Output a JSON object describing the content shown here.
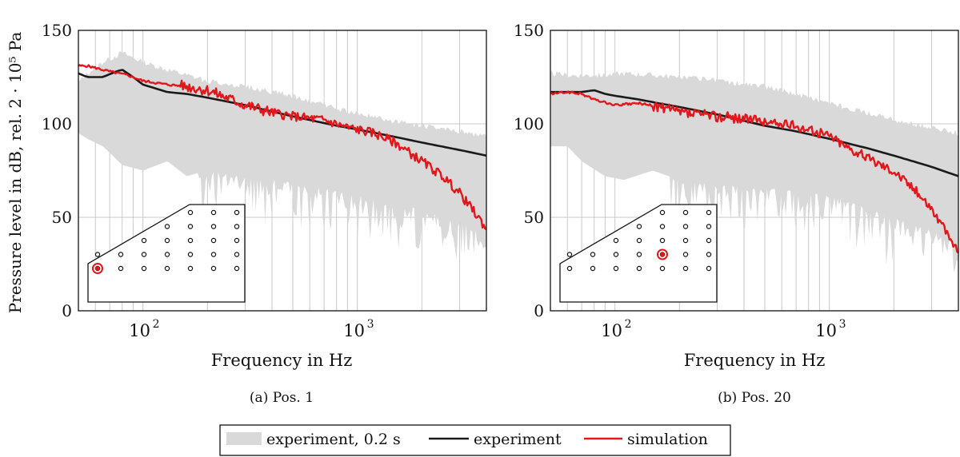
{
  "figure": {
    "ylabel": "Pressure level in dB, rel. 2 · 10⁵ Pa",
    "legend": {
      "items": [
        {
          "label": "experiment, 0.2 s",
          "kind": "band",
          "color": "#d9d9da"
        },
        {
          "label": "experiment",
          "kind": "line",
          "color": "#1a1a1a"
        },
        {
          "label": "simulation",
          "kind": "line",
          "color": "#e2161b"
        }
      ]
    }
  },
  "chart_data": [
    {
      "type": "line",
      "caption": "(a) Pos. 1",
      "xlabel": "Frequency in Hz",
      "ylabel": "Pressure level in dB, rel. 2 · 10⁵ Pa",
      "xscale": "log",
      "xlim": [
        50,
        4000
      ],
      "ylim": [
        0,
        150
      ],
      "x_ticks": [
        {
          "value": 100,
          "label": "10",
          "exp": "2"
        },
        {
          "value": 1000,
          "label": "10",
          "exp": "3"
        }
      ],
      "y_ticks": [
        0,
        50,
        100,
        150
      ],
      "grid": true,
      "band": {
        "name": "experiment, 0.2 s",
        "x": [
          50,
          55,
          65,
          80,
          100,
          130,
          160,
          200,
          300,
          500,
          800,
          1000,
          1500,
          2000,
          3000,
          4000
        ],
        "upper": [
          122,
          127,
          133,
          138,
          133,
          129,
          126,
          123,
          120,
          115,
          108,
          106,
          101,
          99,
          96,
          93
        ],
        "lower": [
          95,
          92,
          88,
          78,
          75,
          80,
          72,
          75,
          72,
          69,
          64,
          62,
          58,
          54,
          48,
          40
        ]
      },
      "series": [
        {
          "name": "experiment",
          "color": "#1a1a1a",
          "x": [
            50,
            55,
            65,
            75,
            80,
            90,
            100,
            130,
            160,
            200,
            300,
            500,
            800,
            1000,
            1500,
            2000,
            3000,
            4000
          ],
          "y": [
            127,
            125,
            125,
            128,
            129,
            125,
            121,
            117,
            116,
            114,
            110,
            104,
            99,
            97,
            93,
            90,
            86,
            83
          ]
        },
        {
          "name": "simulation",
          "color": "#e2161b",
          "x": [
            50,
            55,
            70,
            85,
            100,
            130,
            160,
            200,
            300,
            400,
            500,
            700,
            900,
            1000,
            1200,
            1500,
            2000,
            2500,
            3000,
            3500,
            4000
          ],
          "y": [
            131,
            131,
            128,
            126,
            123,
            121,
            120,
            118,
            110,
            106,
            104,
            102,
            98,
            97,
            95,
            90,
            80,
            72,
            63,
            53,
            44
          ]
        }
      ],
      "inset_marker": {
        "row": 4,
        "col": 0
      }
    },
    {
      "type": "line",
      "caption": "(b) Pos. 20",
      "xlabel": "Frequency in Hz",
      "ylabel": "",
      "xscale": "log",
      "xlim": [
        50,
        4000
      ],
      "ylim": [
        0,
        150
      ],
      "x_ticks": [
        {
          "value": 100,
          "label": "10",
          "exp": "2"
        },
        {
          "value": 1000,
          "label": "10",
          "exp": "3"
        }
      ],
      "y_ticks": [
        0,
        50,
        100,
        150
      ],
      "grid": true,
      "band": {
        "name": "experiment, 0.2 s",
        "x": [
          50,
          60,
          70,
          90,
          110,
          150,
          200,
          300,
          500,
          700,
          1000,
          1500,
          2000,
          3000,
          4000
        ],
        "upper": [
          127,
          126,
          126,
          126,
          127,
          126,
          125,
          123,
          120,
          116,
          111,
          106,
          102,
          98,
          95
        ],
        "lower": [
          88,
          88,
          80,
          72,
          70,
          75,
          70,
          68,
          66,
          64,
          62,
          56,
          50,
          44,
          36
        ]
      },
      "series": [
        {
          "name": "experiment",
          "color": "#1a1a1a",
          "x": [
            50,
            60,
            70,
            80,
            90,
            100,
            130,
            160,
            200,
            300,
            500,
            700,
            1000,
            1500,
            2000,
            3000,
            4000
          ],
          "y": [
            117,
            117,
            117,
            118,
            116,
            115,
            113,
            111,
            109,
            105,
            99,
            96,
            92,
            87,
            83,
            77,
            72
          ]
        },
        {
          "name": "simulation",
          "color": "#e2161b",
          "x": [
            50,
            60,
            70,
            80,
            100,
            130,
            160,
            200,
            300,
            400,
            500,
            700,
            900,
            1000,
            1200,
            1500,
            2000,
            2500,
            3000,
            3500,
            4000
          ],
          "y": [
            116,
            117,
            116,
            113,
            110,
            111,
            109,
            106,
            104,
            103,
            101,
            99,
            95,
            94,
            88,
            82,
            75,
            65,
            55,
            42,
            32
          ]
        }
      ],
      "inset_marker": {
        "row": 3,
        "col": 4
      }
    }
  ]
}
